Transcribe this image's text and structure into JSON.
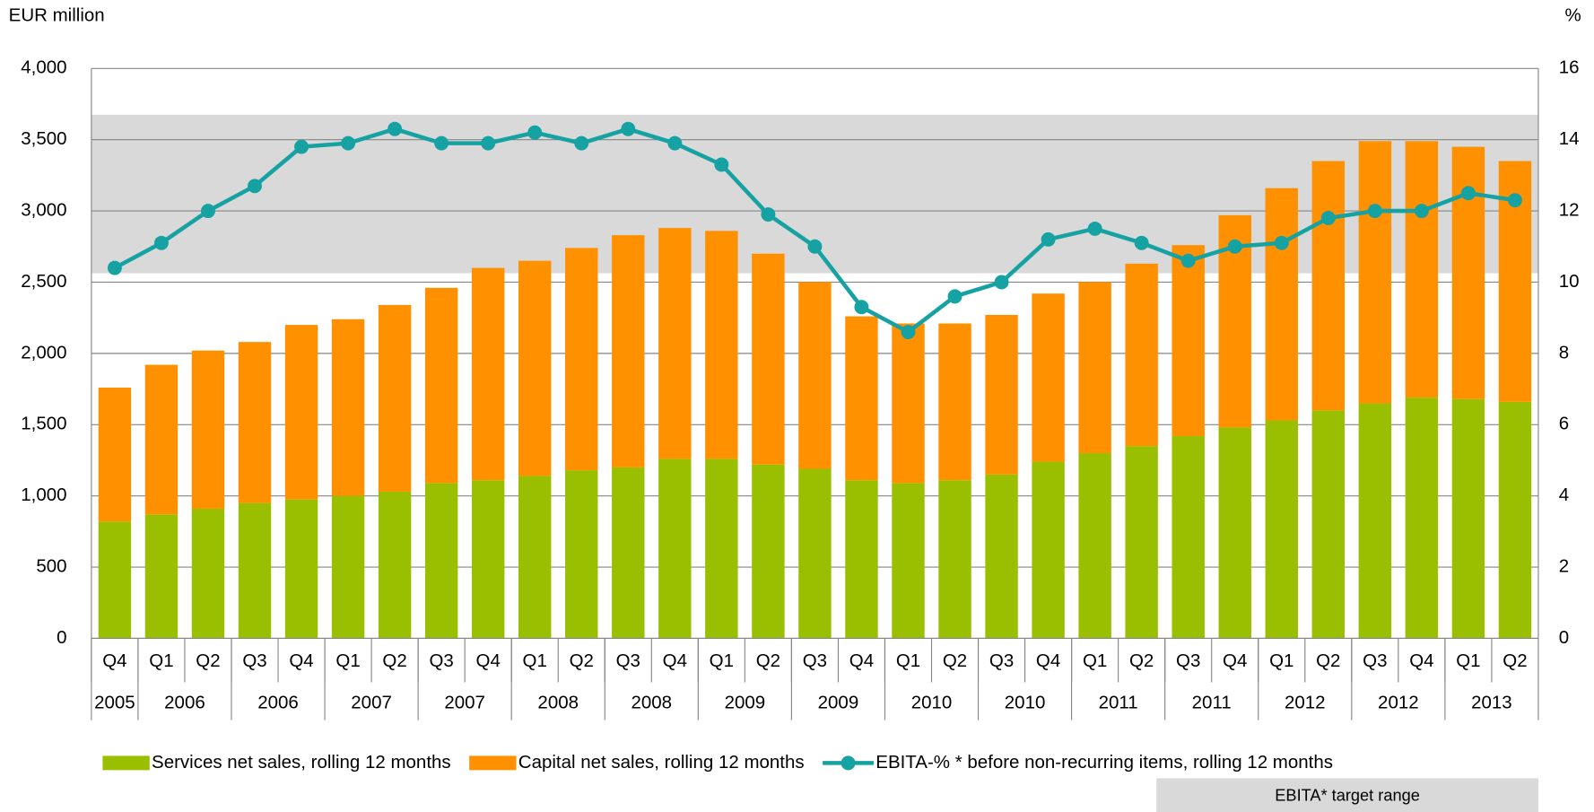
{
  "chart_data": {
    "type": "bar-line",
    "y_axis_label": "EUR million",
    "y2_axis_label": "%",
    "categories": [
      "Q4",
      "Q1",
      "Q2",
      "Q3",
      "Q4",
      "Q1",
      "Q2",
      "Q3",
      "Q4",
      "Q1",
      "Q2",
      "Q3",
      "Q4",
      "Q1",
      "Q2",
      "Q3",
      "Q4",
      "Q1",
      "Q2",
      "Q3",
      "Q4",
      "Q1",
      "Q2",
      "Q3",
      "Q4",
      "Q1",
      "Q2",
      "Q3",
      "Q4",
      "Q1",
      "Q2"
    ],
    "year_groups": [
      {
        "label": "2005",
        "span": 1
      },
      {
        "label": "2006",
        "span": 2
      },
      {
        "label": "2006",
        "span": 2
      },
      {
        "label": "2007",
        "span": 2
      },
      {
        "label": "2007",
        "span": 2
      },
      {
        "label": "2008",
        "span": 2
      },
      {
        "label": "2008",
        "span": 2
      },
      {
        "label": "2009",
        "span": 2
      },
      {
        "label": "2009",
        "span": 2
      },
      {
        "label": "2010",
        "span": 2
      },
      {
        "label": "2010",
        "span": 2
      },
      {
        "label": "2011",
        "span": 2
      },
      {
        "label": "2011",
        "span": 2
      },
      {
        "label": "2012",
        "span": 2
      },
      {
        "label": "2012",
        "span": 2
      },
      {
        "label": "2013",
        "span": 2
      }
    ],
    "series": [
      {
        "name": "Services net sales, rolling 12 months",
        "color": "#99bf00",
        "kind": "bar",
        "values": [
          820,
          870,
          910,
          950,
          975,
          1000,
          1030,
          1090,
          1110,
          1140,
          1180,
          1200,
          1260,
          1260,
          1220,
          1190,
          1110,
          1090,
          1110,
          1150,
          1240,
          1300,
          1350,
          1420,
          1480,
          1530,
          1600,
          1650,
          1690,
          1680,
          1660
        ]
      },
      {
        "name": "Capital net sales, rolling 12 months",
        "color": "#ff9100",
        "kind": "bar",
        "values": [
          940,
          1050,
          1110,
          1130,
          1225,
          1240,
          1310,
          1370,
          1490,
          1510,
          1560,
          1630,
          1620,
          1600,
          1480,
          1310,
          1150,
          1120,
          1100,
          1120,
          1180,
          1200,
          1280,
          1340,
          1490,
          1630,
          1750,
          1840,
          1800,
          1770,
          1690
        ]
      },
      {
        "name": "EBITA-% * before non-recurring items, rolling 12 months",
        "color": "#16a2a2",
        "kind": "line",
        "axis": "y2",
        "values": [
          10.4,
          11.1,
          12.0,
          12.7,
          13.8,
          13.9,
          14.3,
          13.9,
          13.9,
          14.2,
          13.9,
          14.3,
          13.9,
          13.3,
          11.9,
          11.0,
          9.3,
          8.6,
          9.6,
          10.0,
          11.2,
          11.5,
          11.1,
          10.6,
          11.0,
          11.1,
          11.8,
          12.0,
          12.0,
          12.5,
          12.3
        ]
      }
    ],
    "target_range": {
      "label": "EBITA* target range",
      "color": "#d9d9d9",
      "y2": [
        10.25,
        14.7
      ]
    },
    "ylim": [
      0,
      4000
    ],
    "yticks": [
      0,
      500,
      {
        "value": 1000,
        "label": "1,000"
      },
      {
        "value": 1500,
        "label": "1,500"
      },
      {
        "value": 2000,
        "label": "2,000"
      },
      {
        "value": 2500,
        "label": "2,500"
      },
      {
        "value": 3000,
        "label": "3,000"
      },
      {
        "value": 3500,
        "label": "3,500"
      },
      {
        "value": 4000,
        "label": "4,000"
      }
    ],
    "y2lim": [
      0,
      16
    ],
    "y2ticks": [
      0,
      2,
      4,
      6,
      8,
      10,
      12,
      14,
      16
    ],
    "grid": true,
    "legend": "bottom"
  }
}
